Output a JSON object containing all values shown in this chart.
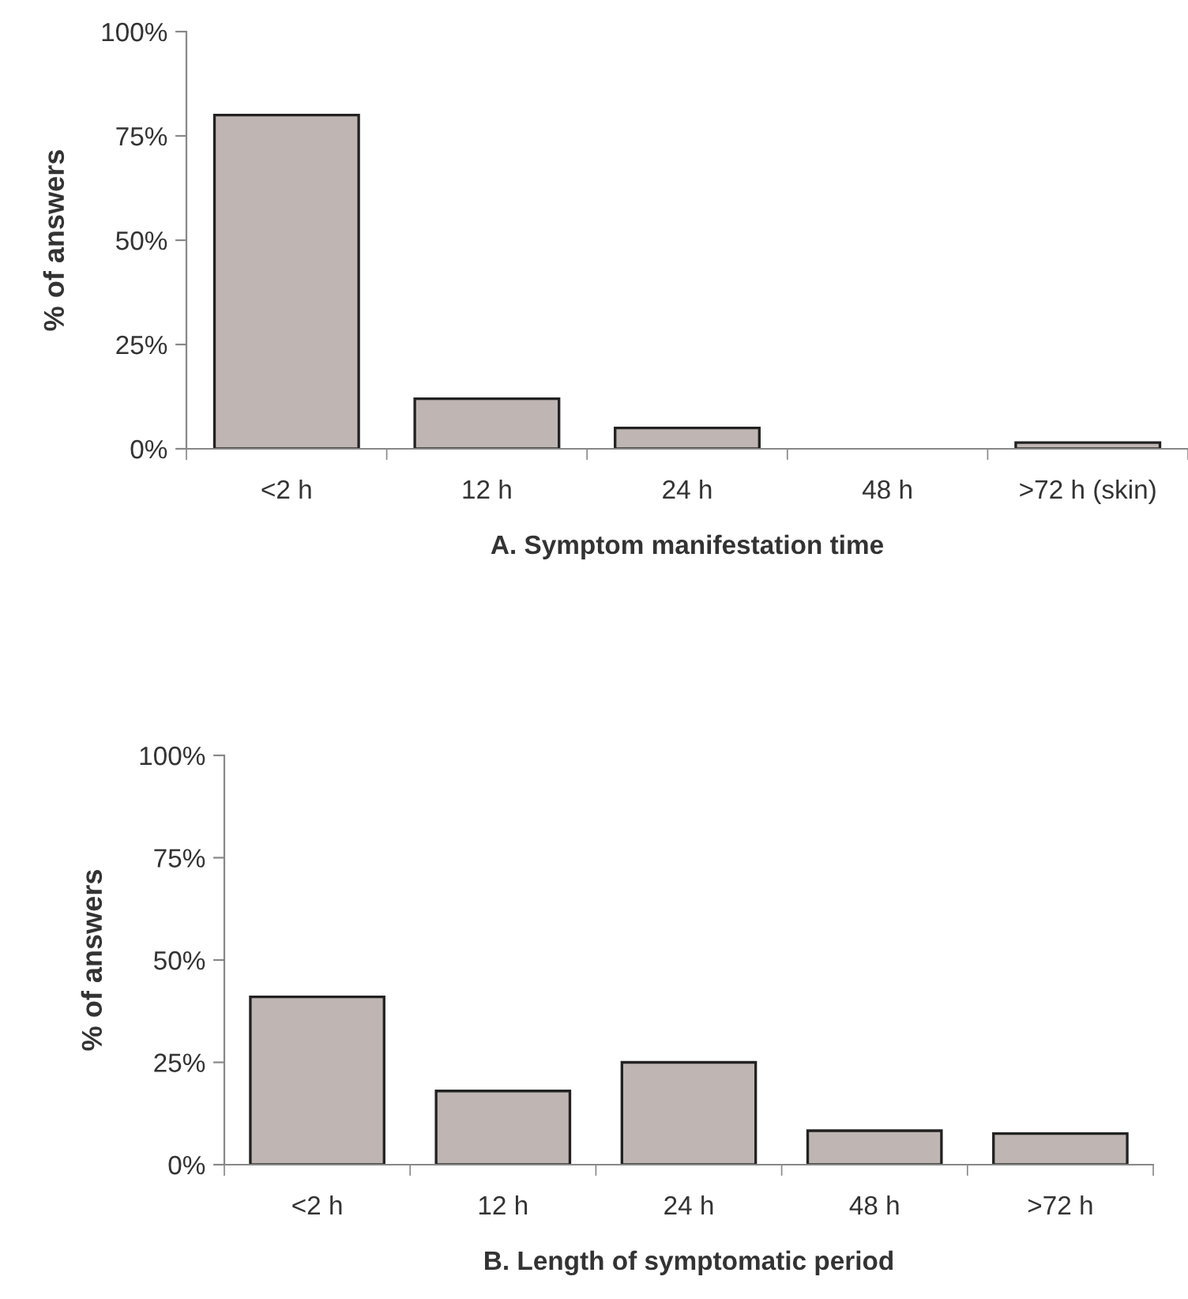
{
  "chart_data": [
    {
      "type": "bar",
      "xlabel": "A. Symptom manifestation time",
      "ylabel": "% of answers",
      "categories": [
        "<2 h",
        "12 h",
        "24 h",
        "48 h",
        ">72 h (skin)"
      ],
      "values": [
        80,
        12,
        5,
        0,
        1.5
      ],
      "color": "#bfb6b3",
      "ylim": [
        0,
        100
      ],
      "yticks": [
        {
          "value": 0,
          "label": "0%"
        },
        {
          "value": 25,
          "label": "25%"
        },
        {
          "value": 50,
          "label": "50%"
        },
        {
          "value": 75,
          "label": "75%"
        },
        {
          "value": 100,
          "label": "100%"
        }
      ],
      "grid": false,
      "legend": false
    },
    {
      "type": "bar",
      "xlabel": "B. Length of symptomatic period",
      "ylabel": "% of answers",
      "categories": [
        "<2 h",
        "12 h",
        "24 h",
        "48 h",
        ">72 h"
      ],
      "values": [
        41,
        18,
        25,
        8.3,
        7.6
      ],
      "color": "#bfb6b3",
      "ylim": [
        0,
        100
      ],
      "yticks": [
        {
          "value": 0,
          "label": "0%"
        },
        {
          "value": 25,
          "label": "25%"
        },
        {
          "value": 50,
          "label": "50%"
        },
        {
          "value": 75,
          "label": "75%"
        },
        {
          "value": 100,
          "label": "100%"
        }
      ],
      "grid": false,
      "legend": false
    }
  ]
}
